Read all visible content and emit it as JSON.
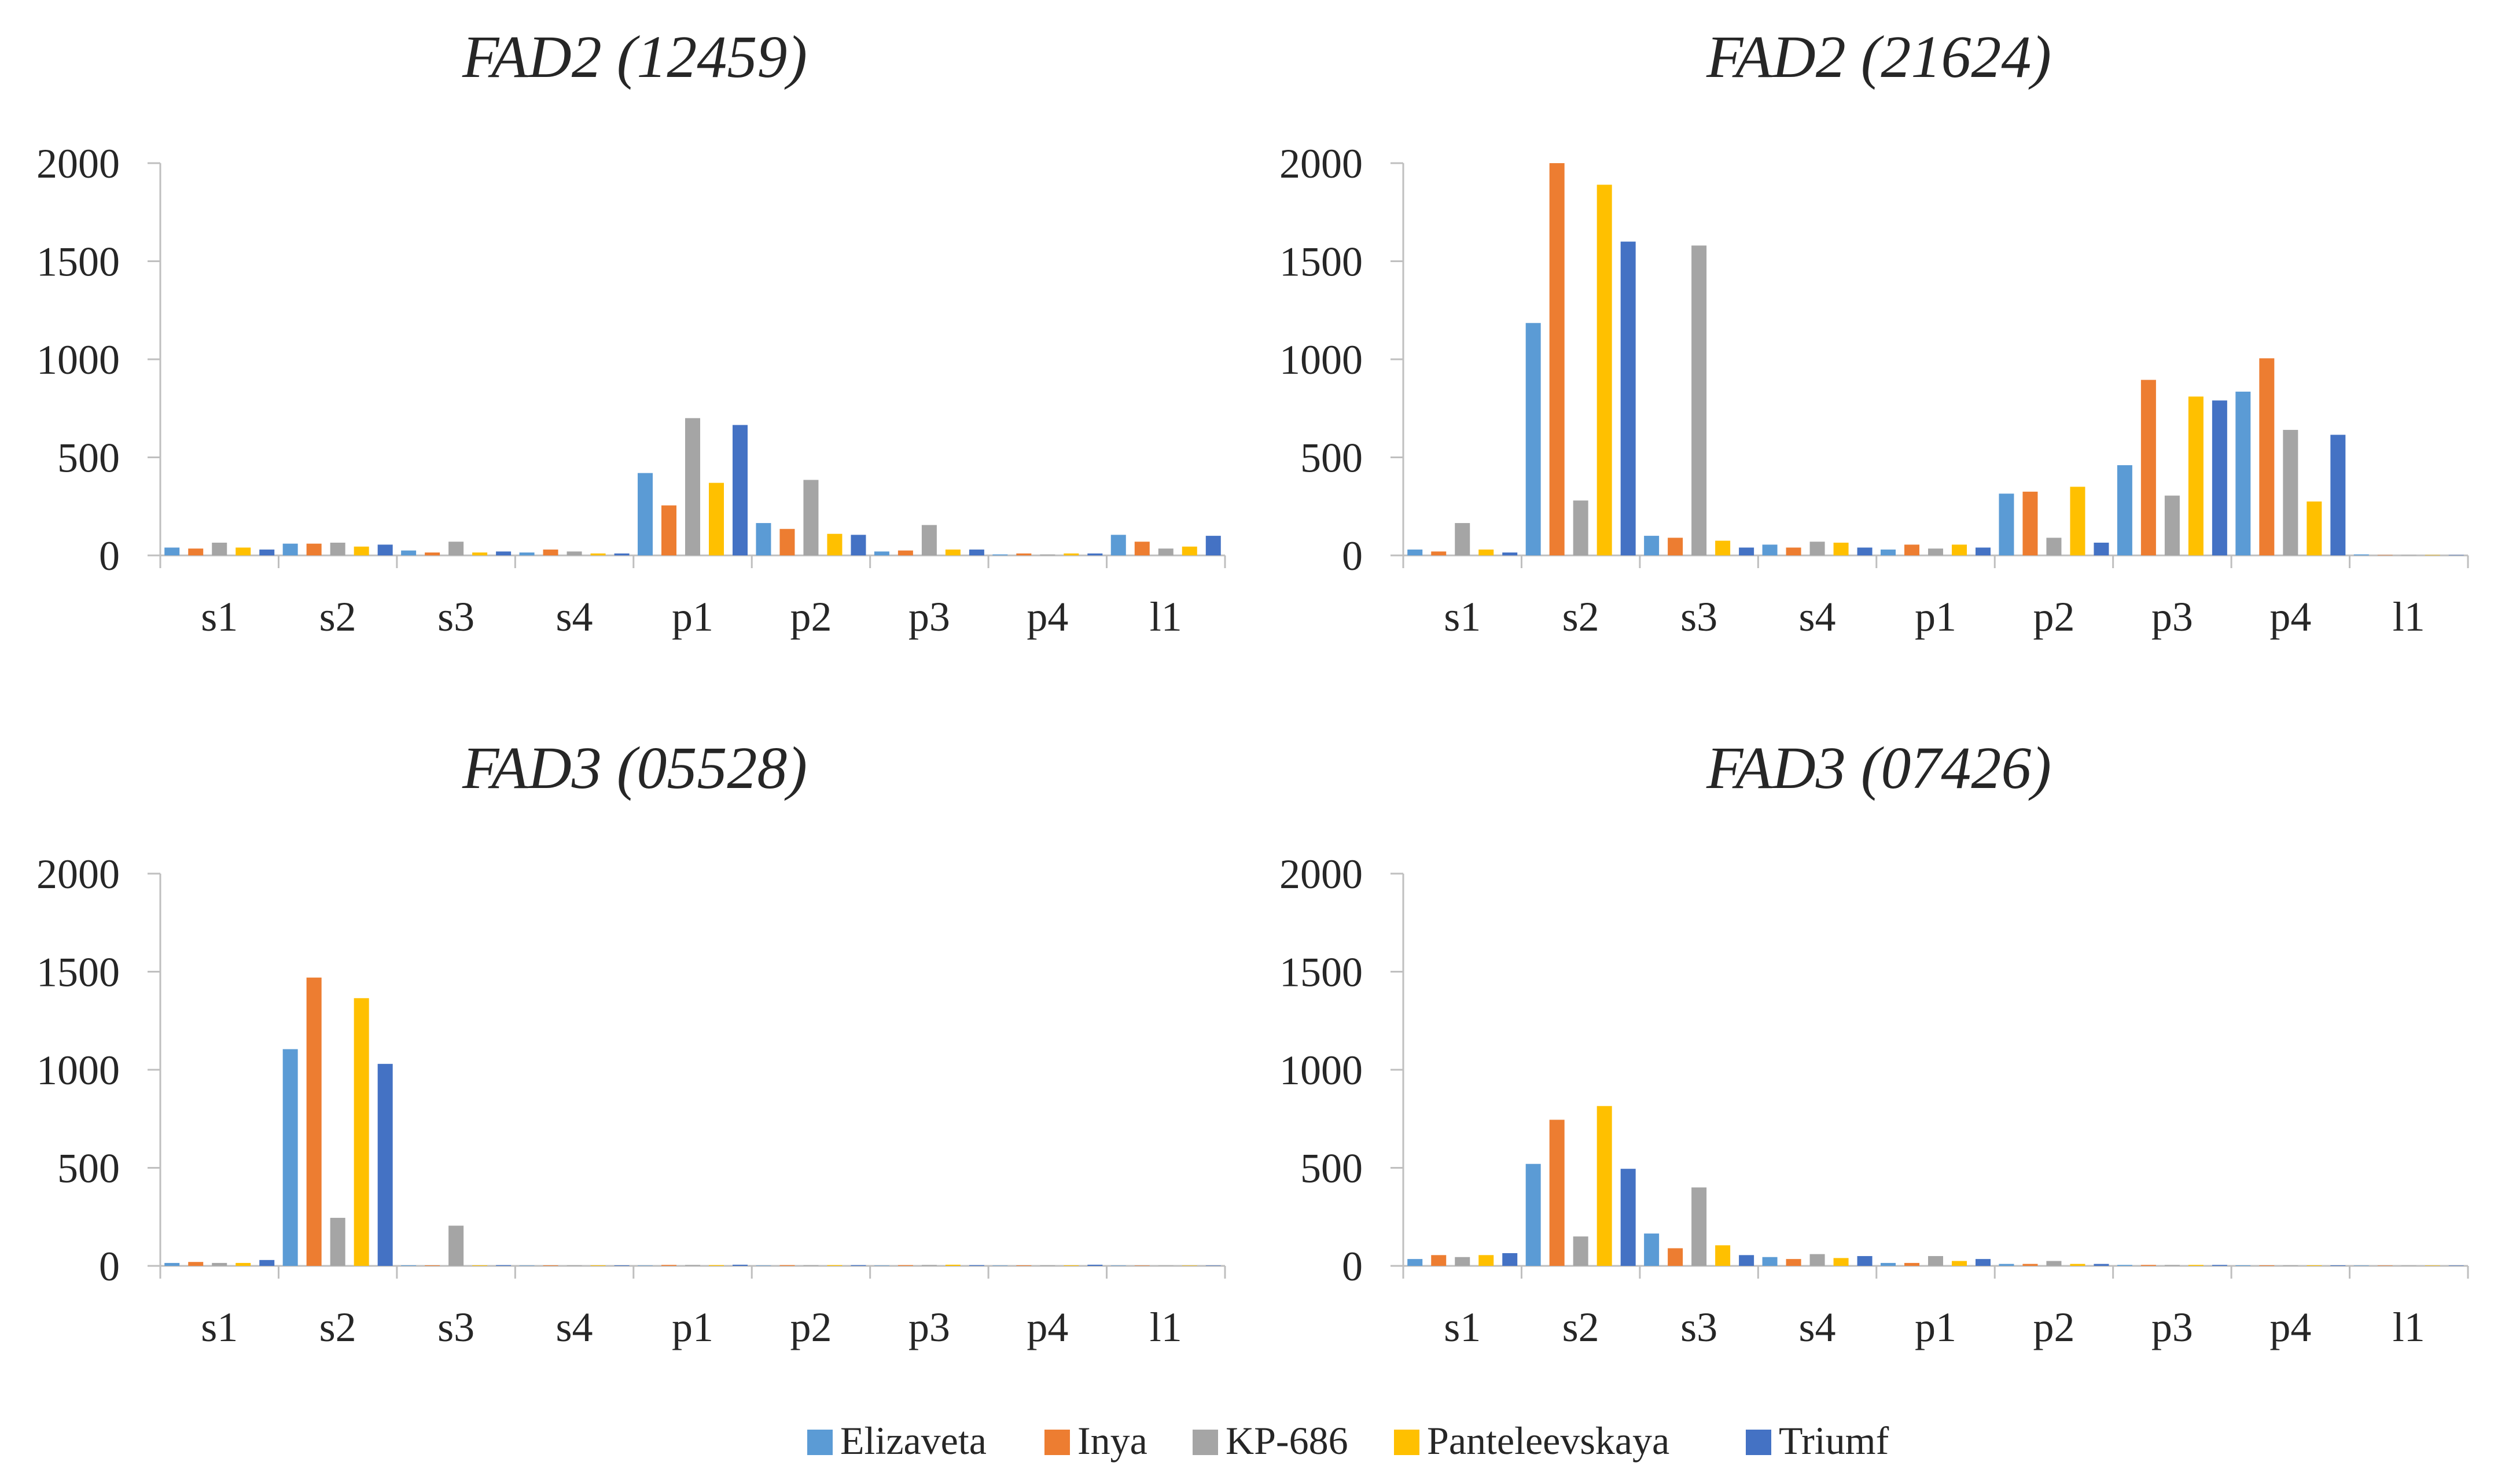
{
  "chart_data": [
    {
      "type": "bar",
      "title": "FAD2 (12459)",
      "categories": [
        "s1",
        "s2",
        "s3",
        "s4",
        "p1",
        "p2",
        "p3",
        "p4",
        "l1"
      ],
      "ylim": [
        0,
        2000
      ],
      "yticks": [
        "0",
        "500",
        "1000",
        "1500",
        "2000"
      ],
      "series": [
        {
          "name": "Elizaveta",
          "values": [
            40,
            60,
            25,
            15,
            420,
            165,
            20,
            5,
            105
          ]
        },
        {
          "name": "Inya",
          "values": [
            35,
            60,
            15,
            30,
            255,
            135,
            25,
            10,
            70
          ]
        },
        {
          "name": "KP-686",
          "values": [
            65,
            65,
            70,
            20,
            700,
            385,
            155,
            5,
            35
          ]
        },
        {
          "name": "Panteleevskaya",
          "values": [
            40,
            45,
            15,
            10,
            370,
            110,
            30,
            10,
            45
          ]
        },
        {
          "name": "Triumf",
          "values": [
            30,
            55,
            20,
            10,
            665,
            105,
            30,
            10,
            100
          ]
        }
      ]
    },
    {
      "type": "bar",
      "title": "FAD2 (21624)",
      "categories": [
        "s1",
        "s2",
        "s3",
        "s4",
        "p1",
        "p2",
        "p3",
        "p4",
        "l1"
      ],
      "ylim": [
        0,
        2000
      ],
      "yticks": [
        "0",
        "500",
        "1000",
        "1500",
        "2000"
      ],
      "series": [
        {
          "name": "Elizaveta",
          "values": [
            30,
            1185,
            100,
            55,
            30,
            315,
            460,
            835,
            5
          ]
        },
        {
          "name": "Inya",
          "values": [
            20,
            2000,
            90,
            40,
            55,
            325,
            895,
            1005,
            2
          ]
        },
        {
          "name": "KP-686",
          "values": [
            165,
            280,
            1580,
            70,
            35,
            90,
            305,
            640,
            2
          ]
        },
        {
          "name": "Panteleevskaya",
          "values": [
            30,
            1890,
            75,
            65,
            55,
            350,
            810,
            275,
            2
          ]
        },
        {
          "name": "Triumf",
          "values": [
            15,
            1600,
            40,
            40,
            40,
            65,
            790,
            615,
            2
          ]
        }
      ]
    },
    {
      "type": "bar",
      "title": "FAD3 (05528)",
      "categories": [
        "s1",
        "s2",
        "s3",
        "s4",
        "p1",
        "p2",
        "p3",
        "p4",
        "l1"
      ],
      "ylim": [
        0,
        2000
      ],
      "yticks": [
        "0",
        "500",
        "1000",
        "1500",
        "2000"
      ],
      "series": [
        {
          "name": "Elizaveta",
          "values": [
            15,
            1105,
            3,
            2,
            2,
            2,
            2,
            2,
            2
          ]
        },
        {
          "name": "Inya",
          "values": [
            20,
            1470,
            3,
            3,
            5,
            4,
            4,
            3,
            2
          ]
        },
        {
          "name": "KP-686",
          "values": [
            15,
            245,
            205,
            3,
            5,
            4,
            5,
            3,
            2
          ]
        },
        {
          "name": "Panteleevskaya",
          "values": [
            15,
            1365,
            3,
            3,
            4,
            4,
            6,
            3,
            2
          ]
        },
        {
          "name": "Triumf",
          "values": [
            30,
            1030,
            4,
            3,
            6,
            4,
            4,
            6,
            2
          ]
        }
      ]
    },
    {
      "type": "bar",
      "title": "FAD3 (07426)",
      "categories": [
        "s1",
        "s2",
        "s3",
        "s4",
        "p1",
        "p2",
        "p3",
        "p4",
        "l1"
      ],
      "ylim": [
        0,
        2000
      ],
      "yticks": [
        "0",
        "500",
        "1000",
        "1500",
        "2000"
      ],
      "series": [
        {
          "name": "Elizaveta",
          "values": [
            35,
            520,
            165,
            45,
            15,
            10,
            5,
            3,
            2
          ]
        },
        {
          "name": "Inya",
          "values": [
            55,
            745,
            90,
            35,
            15,
            10,
            5,
            3,
            2
          ]
        },
        {
          "name": "KP-686",
          "values": [
            45,
            150,
            400,
            60,
            50,
            25,
            5,
            3,
            2
          ]
        },
        {
          "name": "Panteleevskaya",
          "values": [
            55,
            815,
            105,
            40,
            25,
            10,
            5,
            3,
            2
          ]
        },
        {
          "name": "Triumf",
          "values": [
            65,
            495,
            55,
            50,
            35,
            10,
            5,
            3,
            2
          ]
        }
      ]
    }
  ],
  "legend": {
    "items": [
      {
        "name": "Elizaveta",
        "color": "#5B9BD5"
      },
      {
        "name": "Inya",
        "color": "#ED7D31"
      },
      {
        "name": "KP-686",
        "color": "#A5A5A5"
      },
      {
        "name": "Panteleevskaya",
        "color": "#FFC000"
      },
      {
        "name": "Triumf",
        "color": "#4472C4"
      }
    ]
  }
}
